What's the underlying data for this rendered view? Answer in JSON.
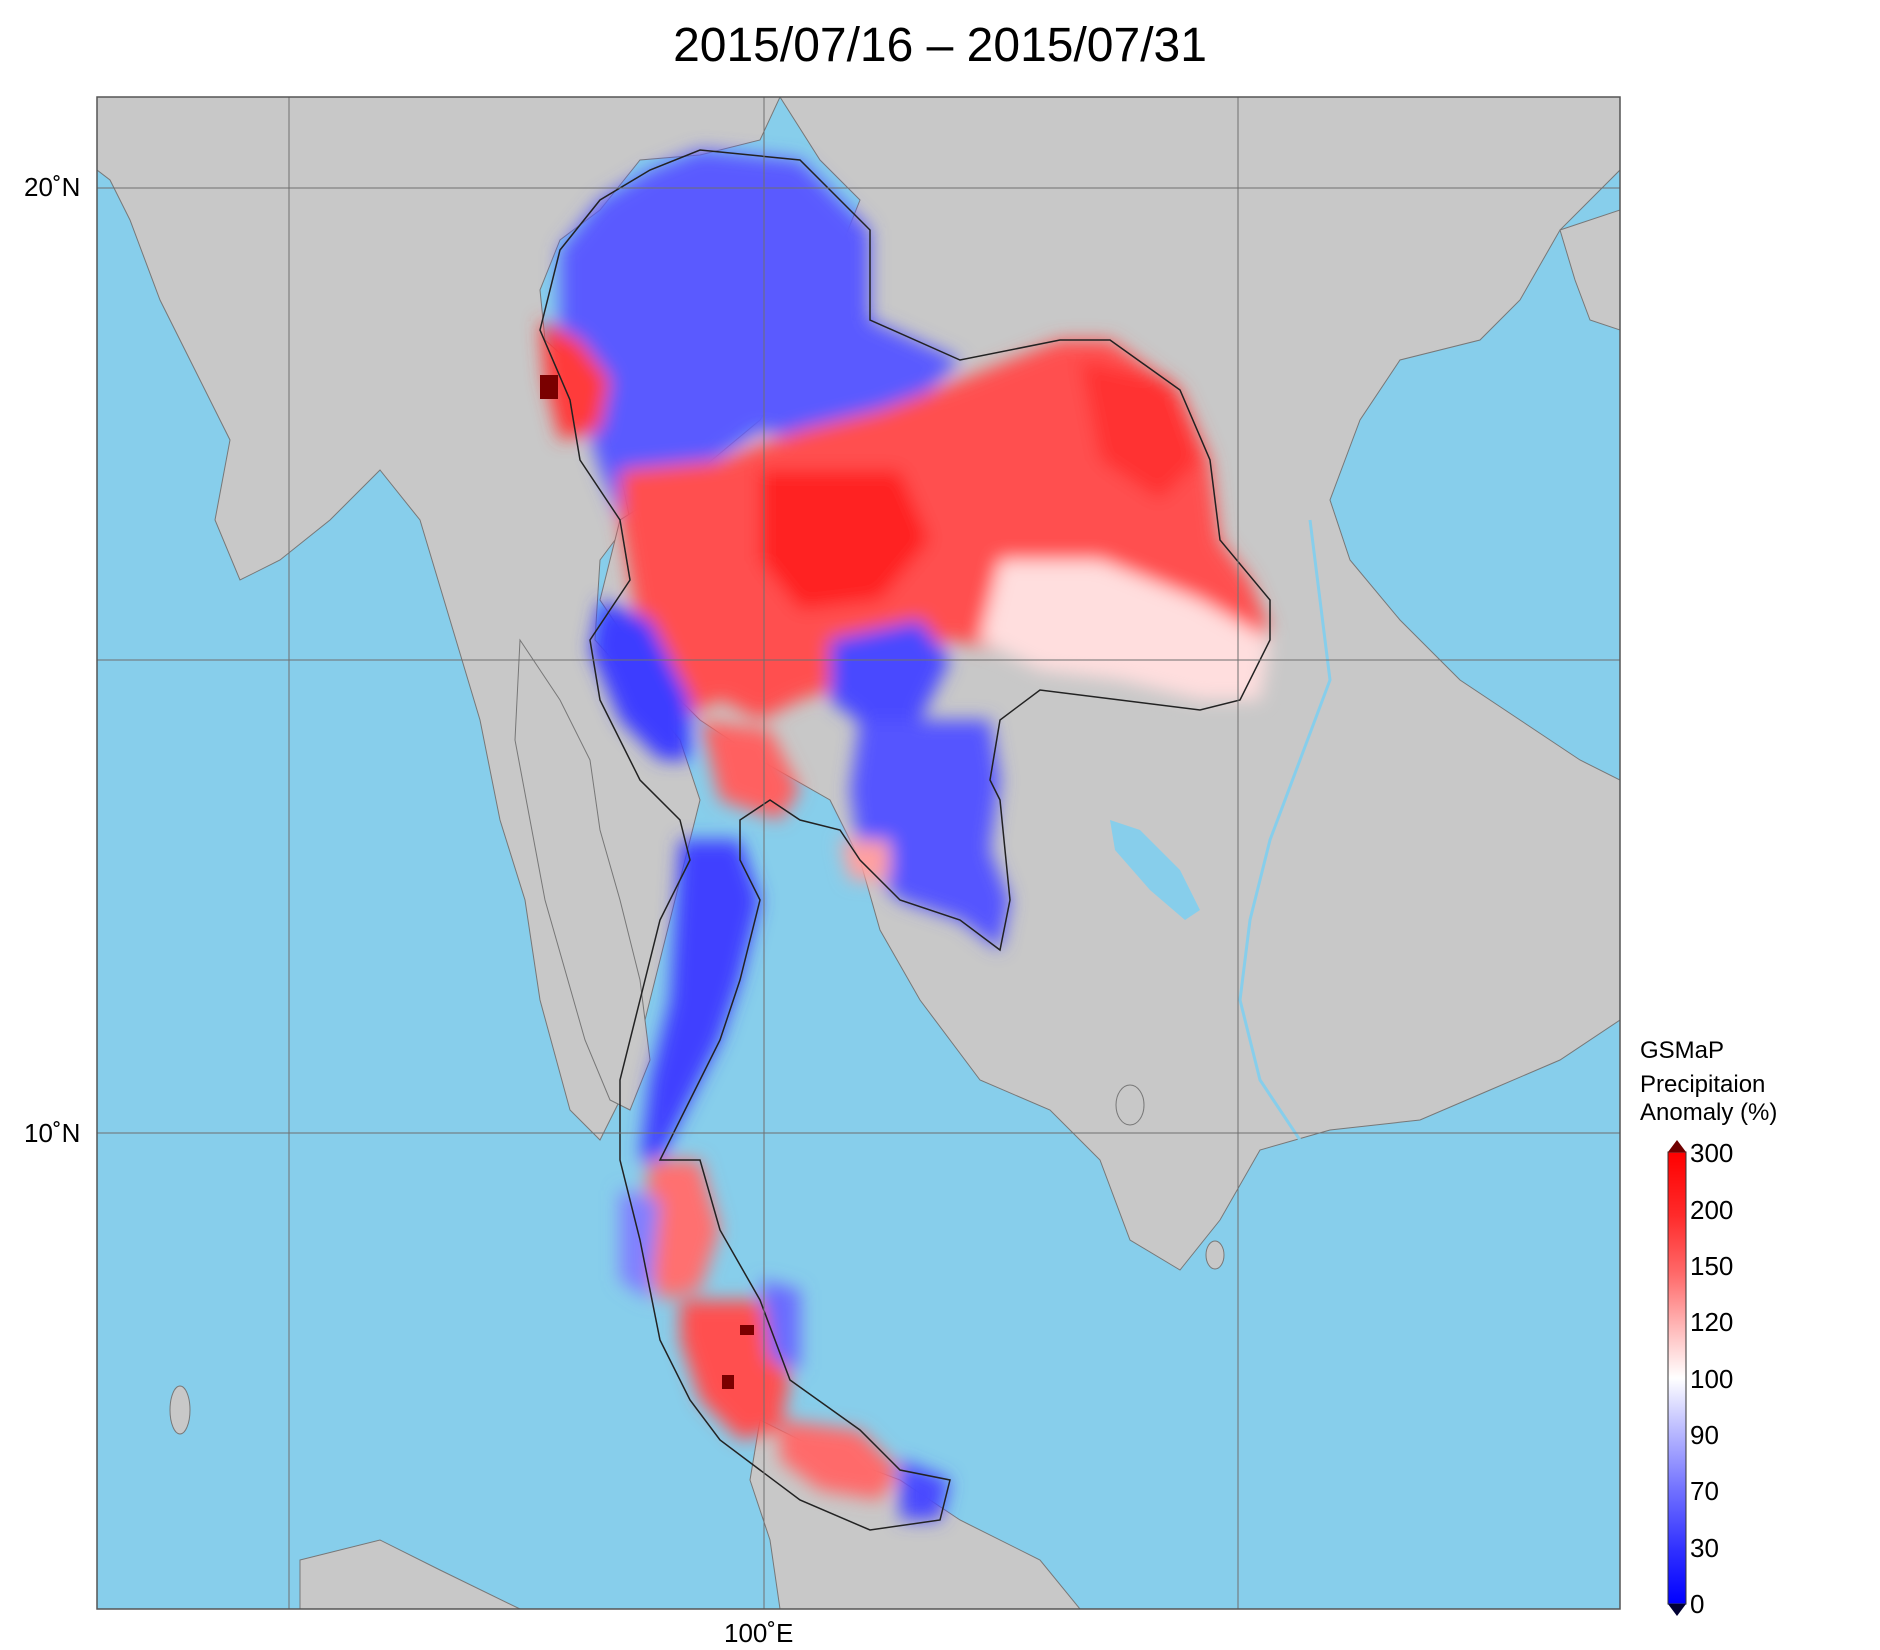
{
  "title": "2015/07/16 – 2015/07/31",
  "axes": {
    "lat_labels": [
      "20˚N",
      "10˚N"
    ],
    "lon_labels": [
      "100˚E"
    ]
  },
  "legend": {
    "line1": "GSMaP",
    "line2": "Precipitaion",
    "line3": "Anomaly (%)",
    "ticks": [
      "300",
      "200",
      "150",
      "120",
      "100",
      "90",
      "70",
      "30",
      "0"
    ],
    "colors": [
      "#700000",
      "#ff1414",
      "#ff5a5a",
      "#ffaaaa",
      "#ffffff",
      "#b4b4ff",
      "#6e6eff",
      "#2828ff",
      "#0000ff"
    ]
  },
  "colors": {
    "ocean": "#87ceeb",
    "land": "#c8c8c8",
    "positive": "#ff3c3c",
    "negative": "#3c3cff"
  }
}
